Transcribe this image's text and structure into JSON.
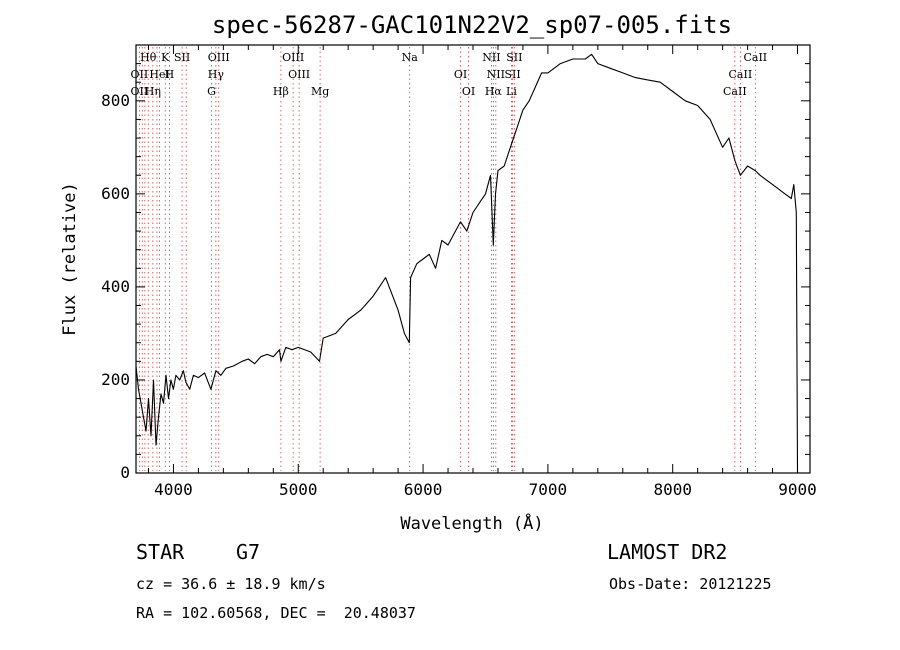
{
  "chart_data": {
    "type": "line",
    "title": "spec-56287-GAC101N22V2_sp07-005.fits",
    "xlabel": "Wavelength (Å)",
    "ylabel": "Flux (relative)",
    "xlim": [
      3700,
      9100
    ],
    "ylim": [
      0,
      920
    ],
    "x_ticks": [
      4000,
      5000,
      6000,
      7000,
      8000,
      9000
    ],
    "y_ticks": [
      0,
      200,
      400,
      600,
      800
    ],
    "x_tick_labels": [
      "4000",
      "5000",
      "6000",
      "7000",
      "8000",
      "9000"
    ],
    "y_tick_labels": [
      "0",
      "200",
      "400",
      "600",
      "800"
    ],
    "grid": false,
    "series": [
      {
        "x": [
          3700,
          3720,
          3740,
          3760,
          3780,
          3800,
          3820,
          3840,
          3860,
          3880,
          3900,
          3920,
          3940,
          3960,
          3980,
          4000,
          4020,
          4050,
          4080,
          4100,
          4130,
          4160,
          4200,
          4250,
          4300,
          4340,
          4380,
          4420,
          4480,
          4550,
          4600,
          4650,
          4700,
          4750,
          4800,
          4850,
          4861,
          4900,
          4950,
          5000,
          5100,
          5170,
          5200,
          5300,
          5400,
          5500,
          5600,
          5700,
          5800,
          5850,
          5890,
          5900,
          5950,
          6000,
          6050,
          6100,
          6150,
          6200,
          6300,
          6350,
          6400,
          6450,
          6500,
          6540,
          6563,
          6580,
          6600,
          6650,
          6700,
          6750,
          6800,
          6850,
          6900,
          6950,
          7000,
          7100,
          7200,
          7300,
          7350,
          7400,
          7500,
          7600,
          7700,
          7800,
          7900,
          8000,
          8100,
          8200,
          8300,
          8400,
          8450,
          8500,
          8542,
          8600,
          8662,
          8700,
          8750,
          8800,
          8850,
          8900,
          8950,
          8970,
          8990,
          9000
        ],
        "y": [
          230,
          180,
          150,
          120,
          90,
          160,
          80,
          200,
          60,
          120,
          170,
          150,
          210,
          160,
          200,
          180,
          210,
          200,
          220,
          195,
          180,
          210,
          205,
          215,
          180,
          220,
          210,
          225,
          230,
          240,
          245,
          235,
          250,
          255,
          250,
          265,
          240,
          270,
          265,
          270,
          260,
          240,
          290,
          300,
          330,
          350,
          380,
          420,
          350,
          300,
          280,
          420,
          450,
          460,
          470,
          440,
          500,
          490,
          540,
          520,
          560,
          580,
          600,
          640,
          490,
          600,
          650,
          660,
          700,
          740,
          780,
          800,
          830,
          860,
          860,
          880,
          890,
          890,
          900,
          880,
          870,
          860,
          850,
          845,
          840,
          820,
          800,
          790,
          760,
          700,
          720,
          670,
          640,
          660,
          650,
          640,
          630,
          620,
          610,
          600,
          590,
          620,
          560,
          0
        ]
      }
    ],
    "line_labels": [
      {
        "text": "Hθ",
        "x": 3798
      },
      {
        "text": "OII",
        "x": 3727
      },
      {
        "text": "OII",
        "x": 3727
      },
      {
        "text": "K",
        "x": 3934
      },
      {
        "text": "HeI",
        "x": 3889
      },
      {
        "text": "Hη",
        "x": 3835
      },
      {
        "text": "SII",
        "x": 4069
      },
      {
        "text": "H",
        "x": 3968
      },
      {
        "text": "G",
        "x": 4305
      },
      {
        "text": "OIII",
        "x": 4363
      },
      {
        "text": "Hγ",
        "x": 4340
      },
      {
        "text": "Hβ",
        "x": 4861
      },
      {
        "text": "OIII",
        "x": 4959
      },
      {
        "text": "OIII",
        "x": 5007
      },
      {
        "text": "Mg",
        "x": 5175
      },
      {
        "text": "Na",
        "x": 5893
      },
      {
        "text": "OI",
        "x": 6300
      },
      {
        "text": "OI",
        "x": 6364
      },
      {
        "text": "NII",
        "x": 6548
      },
      {
        "text": "SII",
        "x": 6717
      },
      {
        "text": "Hα",
        "x": 6563
      },
      {
        "text": "SII",
        "x": 6731
      },
      {
        "text": "NII",
        "x": 6583
      },
      {
        "text": "Li",
        "x": 6708
      },
      {
        "text": "CaII",
        "x": 8662
      },
      {
        "text": "CaII",
        "x": 8542
      },
      {
        "text": "CaII",
        "x": 8498
      }
    ],
    "marker_lines": [
      3727,
      3750,
      3771,
      3798,
      3835,
      3868,
      3889,
      3934,
      3968,
      4069,
      4102,
      4305,
      4340,
      4363,
      4861,
      4959,
      5007,
      5175,
      5893,
      6300,
      6364,
      6548,
      6563,
      6583,
      6708,
      6717,
      6731,
      8498,
      8542,
      8662
    ]
  },
  "info": {
    "object_class": "STAR",
    "subclass": "G7",
    "redshift": "cz = 36.6 ± 18.9 km/s",
    "coords": "RA = 102.60568, DEC =  20.48037",
    "survey": "LAMOST DR2",
    "obs_date": "Obs-Date: 20121225"
  }
}
